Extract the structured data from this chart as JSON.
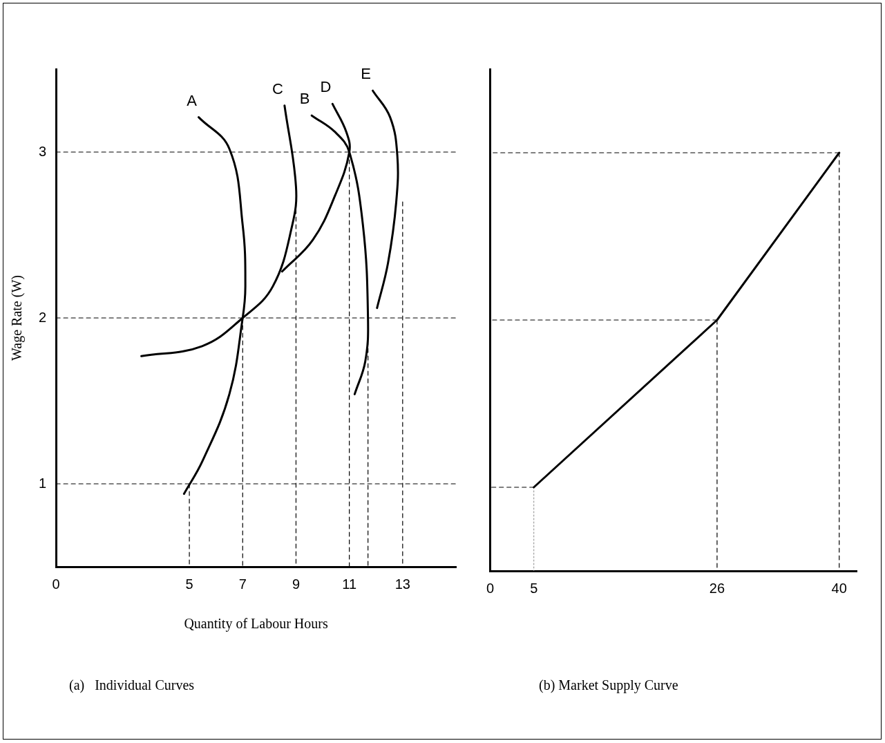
{
  "chart_data": [
    {
      "type": "line",
      "xlabel": "Quantity of Labour Hours",
      "ylabel": "Wage Rate (W)",
      "xlim": [
        0,
        15
      ],
      "ylim": [
        0.5,
        3.5
      ],
      "xticks": [
        0,
        5,
        7,
        9,
        11,
        13
      ],
      "yticks": [
        1,
        2,
        3
      ],
      "grid": false,
      "legend": false,
      "marker": "none",
      "annotations": [
        "(a)   Individual Curves"
      ],
      "series": [
        {
          "name": "A",
          "color": "#000000",
          "line_style": "solid",
          "x": [
            5.35,
            6.5,
            7,
            7.1,
            7,
            6.5,
            5.5,
            4.8
          ],
          "values": [
            3.21,
            3.02,
            2.56,
            2.19,
            2,
            1.54,
            1.14,
            0.94
          ]
        },
        {
          "name": "C",
          "color": "#000000",
          "line_style": "solid",
          "x": [
            8.57,
            9,
            8.86,
            8.13,
            7,
            5.48,
            3.2
          ],
          "values": [
            3.28,
            2.79,
            2.56,
            2.19,
            2,
            1.83,
            1.77
          ]
        },
        {
          "name": "B",
          "color": "#000000",
          "line_style": "solid",
          "x": [
            9.59,
            10.47,
            11,
            11.51,
            11.7,
            11.6,
            11.2
          ],
          "values": [
            3.22,
            3.12,
            3,
            2.56,
            2,
            1.74,
            1.54
          ]
        },
        {
          "name": "D",
          "color": "#000000",
          "line_style": "solid",
          "x": [
            10.37,
            10.89,
            11,
            10.47,
            9.63,
            8.48
          ],
          "values": [
            3.29,
            3.12,
            3,
            2.74,
            2.47,
            2.28
          ]
        },
        {
          "name": "E",
          "color": "#000000",
          "line_style": "solid",
          "x": [
            11.88,
            12.53,
            12.8,
            12.76,
            12.45,
            12.04
          ],
          "values": [
            3.37,
            3.21,
            2.98,
            2.7,
            2.33,
            2.06
          ]
        },
        {
          "color": "#000000",
          "line_style": "dashed",
          "x": [
            0,
            15
          ],
          "values": [
            1,
            1
          ]
        },
        {
          "color": "#000000",
          "line_style": "dashed",
          "x": [
            0,
            15
          ],
          "values": [
            2,
            2
          ]
        },
        {
          "color": "#000000",
          "line_style": "dashed",
          "x": [
            0,
            15
          ],
          "values": [
            3,
            3
          ]
        },
        {
          "color": "#000000",
          "line_style": "dashed",
          "x": [
            5,
            5
          ],
          "values": [
            1,
            0.5
          ]
        },
        {
          "color": "#000000",
          "line_style": "dashed",
          "x": [
            7,
            7
          ],
          "values": [
            2,
            0.5
          ]
        },
        {
          "color": "#000000",
          "line_style": "dashed",
          "x": [
            9,
            9
          ],
          "values": [
            2.7,
            0.5
          ]
        },
        {
          "color": "#000000",
          "line_style": "dashed",
          "x": [
            11,
            11
          ],
          "values": [
            3,
            0.5
          ]
        },
        {
          "color": "#000000",
          "line_style": "dashed",
          "x": [
            11.7,
            11.7
          ],
          "values": [
            2,
            0.5
          ]
        },
        {
          "color": "#000000",
          "line_style": "dashed",
          "x": [
            13,
            13
          ],
          "values": [
            2.7,
            0.5
          ]
        }
      ]
    },
    {
      "type": "line",
      "xlim": [
        0,
        42
      ],
      "ylim": [
        0.5,
        3.5
      ],
      "xticks": [
        0,
        5,
        26,
        40
      ],
      "yticks": [
        1,
        2,
        3
      ],
      "tick_labels": "x",
      "grid": false,
      "legend": false,
      "marker": "none",
      "annotations": [
        "(b) Market Supply Curve"
      ],
      "series": [
        {
          "color": "#000000",
          "line_style": "solid",
          "x": [
            5,
            26,
            40
          ],
          "values": [
            1,
            2,
            3
          ]
        },
        {
          "color": "#888888",
          "line_style": "dotted",
          "x": [
            5,
            5
          ],
          "values": [
            1,
            0.5
          ]
        },
        {
          "color": "#000000",
          "line_style": "dashed",
          "x": [
            26,
            26
          ],
          "values": [
            2,
            0.5
          ]
        },
        {
          "color": "#000000",
          "line_style": "dashed",
          "x": [
            40,
            40
          ],
          "values": [
            3,
            0.5
          ]
        },
        {
          "color": "#000000",
          "line_style": "dashed",
          "x": [
            5,
            0
          ],
          "values": [
            1,
            1
          ]
        },
        {
          "color": "#000000",
          "line_style": "dashed",
          "x": [
            26,
            0
          ],
          "values": [
            2,
            2
          ]
        },
        {
          "color": "#000000",
          "line_style": "dashed",
          "x": [
            40,
            0
          ],
          "values": [
            3,
            3
          ]
        }
      ]
    }
  ]
}
